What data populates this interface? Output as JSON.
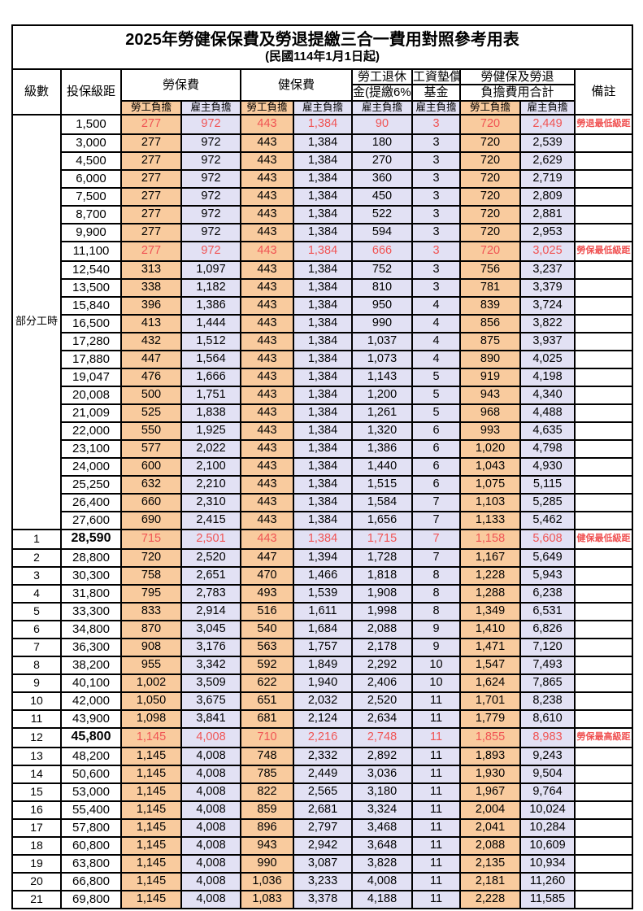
{
  "title": "2025年勞健保保費及勞退提繳三合一費用對照參考用表",
  "subtitle": "(民國114年1月1日起)",
  "colors": {
    "employee_bg": "#F9CB9E",
    "employer_bg": "#E2E1F4",
    "highlight_text": "#F05454"
  },
  "columns": {
    "level": "級數",
    "bracket": "投保級距",
    "labor": "勞保費",
    "health": "健保費",
    "pension_l1": "勞工退休",
    "pension_l2": "金(提繳6%)",
    "fund_l1": "工資墊償",
    "fund_l2": "基金",
    "total_l1": "勞健保及勞退",
    "total_l2": "負擔費用合計",
    "remark": "備註",
    "employee": "勞工負擔",
    "employer": "雇主負擔"
  },
  "part_time_label": "部分工時",
  "part_time_rowspan": 23,
  "rows": [
    {
      "level": null,
      "bracket": "1,500",
      "cells": [
        "277",
        "972",
        "443",
        "1,384",
        "90",
        "3",
        "720",
        "2,449"
      ],
      "remark": "勞退最低級距",
      "red": true,
      "bold": false
    },
    {
      "level": null,
      "bracket": "3,000",
      "cells": [
        "277",
        "972",
        "443",
        "1,384",
        "180",
        "3",
        "720",
        "2,539"
      ],
      "remark": "",
      "red": false,
      "bold": false
    },
    {
      "level": null,
      "bracket": "4,500",
      "cells": [
        "277",
        "972",
        "443",
        "1,384",
        "270",
        "3",
        "720",
        "2,629"
      ],
      "remark": "",
      "red": false,
      "bold": false
    },
    {
      "level": null,
      "bracket": "6,000",
      "cells": [
        "277",
        "972",
        "443",
        "1,384",
        "360",
        "3",
        "720",
        "2,719"
      ],
      "remark": "",
      "red": false,
      "bold": false
    },
    {
      "level": null,
      "bracket": "7,500",
      "cells": [
        "277",
        "972",
        "443",
        "1,384",
        "450",
        "3",
        "720",
        "2,809"
      ],
      "remark": "",
      "red": false,
      "bold": false
    },
    {
      "level": null,
      "bracket": "8,700",
      "cells": [
        "277",
        "972",
        "443",
        "1,384",
        "522",
        "3",
        "720",
        "2,881"
      ],
      "remark": "",
      "red": false,
      "bold": false
    },
    {
      "level": null,
      "bracket": "9,900",
      "cells": [
        "277",
        "972",
        "443",
        "1,384",
        "594",
        "3",
        "720",
        "2,953"
      ],
      "remark": "",
      "red": false,
      "bold": false
    },
    {
      "level": null,
      "bracket": "11,100",
      "cells": [
        "277",
        "972",
        "443",
        "1,384",
        "666",
        "3",
        "720",
        "3,025"
      ],
      "remark": "勞保最低級距",
      "red": true,
      "bold": false
    },
    {
      "level": null,
      "bracket": "12,540",
      "cells": [
        "313",
        "1,097",
        "443",
        "1,384",
        "752",
        "3",
        "756",
        "3,237"
      ],
      "remark": "",
      "red": false,
      "bold": false
    },
    {
      "level": null,
      "bracket": "13,500",
      "cells": [
        "338",
        "1,182",
        "443",
        "1,384",
        "810",
        "3",
        "781",
        "3,379"
      ],
      "remark": "",
      "red": false,
      "bold": false
    },
    {
      "level": null,
      "bracket": "15,840",
      "cells": [
        "396",
        "1,386",
        "443",
        "1,384",
        "950",
        "4",
        "839",
        "3,724"
      ],
      "remark": "",
      "red": false,
      "bold": false
    },
    {
      "level": null,
      "bracket": "16,500",
      "cells": [
        "413",
        "1,444",
        "443",
        "1,384",
        "990",
        "4",
        "856",
        "3,822"
      ],
      "remark": "",
      "red": false,
      "bold": false
    },
    {
      "level": null,
      "bracket": "17,280",
      "cells": [
        "432",
        "1,512",
        "443",
        "1,384",
        "1,037",
        "4",
        "875",
        "3,937"
      ],
      "remark": "",
      "red": false,
      "bold": false
    },
    {
      "level": null,
      "bracket": "17,880",
      "cells": [
        "447",
        "1,564",
        "443",
        "1,384",
        "1,073",
        "4",
        "890",
        "4,025"
      ],
      "remark": "",
      "red": false,
      "bold": false
    },
    {
      "level": null,
      "bracket": "19,047",
      "cells": [
        "476",
        "1,666",
        "443",
        "1,384",
        "1,143",
        "5",
        "919",
        "4,198"
      ],
      "remark": "",
      "red": false,
      "bold": false
    },
    {
      "level": null,
      "bracket": "20,008",
      "cells": [
        "500",
        "1,751",
        "443",
        "1,384",
        "1,200",
        "5",
        "943",
        "4,340"
      ],
      "remark": "",
      "red": false,
      "bold": false
    },
    {
      "level": null,
      "bracket": "21,009",
      "cells": [
        "525",
        "1,838",
        "443",
        "1,384",
        "1,261",
        "5",
        "968",
        "4,488"
      ],
      "remark": "",
      "red": false,
      "bold": false
    },
    {
      "level": null,
      "bracket": "22,000",
      "cells": [
        "550",
        "1,925",
        "443",
        "1,384",
        "1,320",
        "6",
        "993",
        "4,635"
      ],
      "remark": "",
      "red": false,
      "bold": false
    },
    {
      "level": null,
      "bracket": "23,100",
      "cells": [
        "577",
        "2,022",
        "443",
        "1,384",
        "1,386",
        "6",
        "1,020",
        "4,798"
      ],
      "remark": "",
      "red": false,
      "bold": false
    },
    {
      "level": null,
      "bracket": "24,000",
      "cells": [
        "600",
        "2,100",
        "443",
        "1,384",
        "1,440",
        "6",
        "1,043",
        "4,930"
      ],
      "remark": "",
      "red": false,
      "bold": false
    },
    {
      "level": null,
      "bracket": "25,250",
      "cells": [
        "632",
        "2,210",
        "443",
        "1,384",
        "1,515",
        "6",
        "1,075",
        "5,115"
      ],
      "remark": "",
      "red": false,
      "bold": false
    },
    {
      "level": null,
      "bracket": "26,400",
      "cells": [
        "660",
        "2,310",
        "443",
        "1,384",
        "1,584",
        "7",
        "1,103",
        "5,285"
      ],
      "remark": "",
      "red": false,
      "bold": false
    },
    {
      "level": null,
      "bracket": "27,600",
      "cells": [
        "690",
        "2,415",
        "443",
        "1,384",
        "1,656",
        "7",
        "1,133",
        "5,462"
      ],
      "remark": "",
      "red": false,
      "bold": false
    },
    {
      "level": "1",
      "bracket": "28,590",
      "cells": [
        "715",
        "2,501",
        "443",
        "1,384",
        "1,715",
        "7",
        "1,158",
        "5,608"
      ],
      "remark": "健保最低級距",
      "red": true,
      "bold": true
    },
    {
      "level": "2",
      "bracket": "28,800",
      "cells": [
        "720",
        "2,520",
        "447",
        "1,394",
        "1,728",
        "7",
        "1,167",
        "5,649"
      ],
      "remark": "",
      "red": false,
      "bold": false
    },
    {
      "level": "3",
      "bracket": "30,300",
      "cells": [
        "758",
        "2,651",
        "470",
        "1,466",
        "1,818",
        "8",
        "1,228",
        "5,943"
      ],
      "remark": "",
      "red": false,
      "bold": false
    },
    {
      "level": "4",
      "bracket": "31,800",
      "cells": [
        "795",
        "2,783",
        "493",
        "1,539",
        "1,908",
        "8",
        "1,288",
        "6,238"
      ],
      "remark": "",
      "red": false,
      "bold": false
    },
    {
      "level": "5",
      "bracket": "33,300",
      "cells": [
        "833",
        "2,914",
        "516",
        "1,611",
        "1,998",
        "8",
        "1,349",
        "6,531"
      ],
      "remark": "",
      "red": false,
      "bold": false
    },
    {
      "level": "6",
      "bracket": "34,800",
      "cells": [
        "870",
        "3,045",
        "540",
        "1,684",
        "2,088",
        "9",
        "1,410",
        "6,826"
      ],
      "remark": "",
      "red": false,
      "bold": false
    },
    {
      "level": "7",
      "bracket": "36,300",
      "cells": [
        "908",
        "3,176",
        "563",
        "1,757",
        "2,178",
        "9",
        "1,471",
        "7,120"
      ],
      "remark": "",
      "red": false,
      "bold": false
    },
    {
      "level": "8",
      "bracket": "38,200",
      "cells": [
        "955",
        "3,342",
        "592",
        "1,849",
        "2,292",
        "10",
        "1,547",
        "7,493"
      ],
      "remark": "",
      "red": false,
      "bold": false
    },
    {
      "level": "9",
      "bracket": "40,100",
      "cells": [
        "1,002",
        "3,509",
        "622",
        "1,940",
        "2,406",
        "10",
        "1,624",
        "7,865"
      ],
      "remark": "",
      "red": false,
      "bold": false
    },
    {
      "level": "10",
      "bracket": "42,000",
      "cells": [
        "1,050",
        "3,675",
        "651",
        "2,032",
        "2,520",
        "11",
        "1,701",
        "8,238"
      ],
      "remark": "",
      "red": false,
      "bold": false
    },
    {
      "level": "11",
      "bracket": "43,900",
      "cells": [
        "1,098",
        "3,841",
        "681",
        "2,124",
        "2,634",
        "11",
        "1,779",
        "8,610"
      ],
      "remark": "",
      "red": false,
      "bold": false
    },
    {
      "level": "12",
      "bracket": "45,800",
      "cells": [
        "1,145",
        "4,008",
        "710",
        "2,216",
        "2,748",
        "11",
        "1,855",
        "8,983"
      ],
      "remark": "勞保最高級距",
      "red": true,
      "bold": true
    },
    {
      "level": "13",
      "bracket": "48,200",
      "cells": [
        "1,145",
        "4,008",
        "748",
        "2,332",
        "2,892",
        "11",
        "1,893",
        "9,243"
      ],
      "remark": "",
      "red": false,
      "bold": false
    },
    {
      "level": "14",
      "bracket": "50,600",
      "cells": [
        "1,145",
        "4,008",
        "785",
        "2,449",
        "3,036",
        "11",
        "1,930",
        "9,504"
      ],
      "remark": "",
      "red": false,
      "bold": false
    },
    {
      "level": "15",
      "bracket": "53,000",
      "cells": [
        "1,145",
        "4,008",
        "822",
        "2,565",
        "3,180",
        "11",
        "1,967",
        "9,764"
      ],
      "remark": "",
      "red": false,
      "bold": false
    },
    {
      "level": "16",
      "bracket": "55,400",
      "cells": [
        "1,145",
        "4,008",
        "859",
        "2,681",
        "3,324",
        "11",
        "2,004",
        "10,024"
      ],
      "remark": "",
      "red": false,
      "bold": false
    },
    {
      "level": "17",
      "bracket": "57,800",
      "cells": [
        "1,145",
        "4,008",
        "896",
        "2,797",
        "3,468",
        "11",
        "2,041",
        "10,284"
      ],
      "remark": "",
      "red": false,
      "bold": false
    },
    {
      "level": "18",
      "bracket": "60,800",
      "cells": [
        "1,145",
        "4,008",
        "943",
        "2,942",
        "3,648",
        "11",
        "2,088",
        "10,609"
      ],
      "remark": "",
      "red": false,
      "bold": false
    },
    {
      "level": "19",
      "bracket": "63,800",
      "cells": [
        "1,145",
        "4,008",
        "990",
        "3,087",
        "3,828",
        "11",
        "2,135",
        "10,934"
      ],
      "remark": "",
      "red": false,
      "bold": false
    },
    {
      "level": "20",
      "bracket": "66,800",
      "cells": [
        "1,145",
        "4,008",
        "1,036",
        "3,233",
        "4,008",
        "11",
        "2,181",
        "11,260"
      ],
      "remark": "",
      "red": false,
      "bold": false
    },
    {
      "level": "21",
      "bracket": "69,800",
      "cells": [
        "1,145",
        "4,008",
        "1,083",
        "3,378",
        "4,188",
        "11",
        "2,228",
        "11,585"
      ],
      "remark": "",
      "red": false,
      "bold": false
    }
  ]
}
